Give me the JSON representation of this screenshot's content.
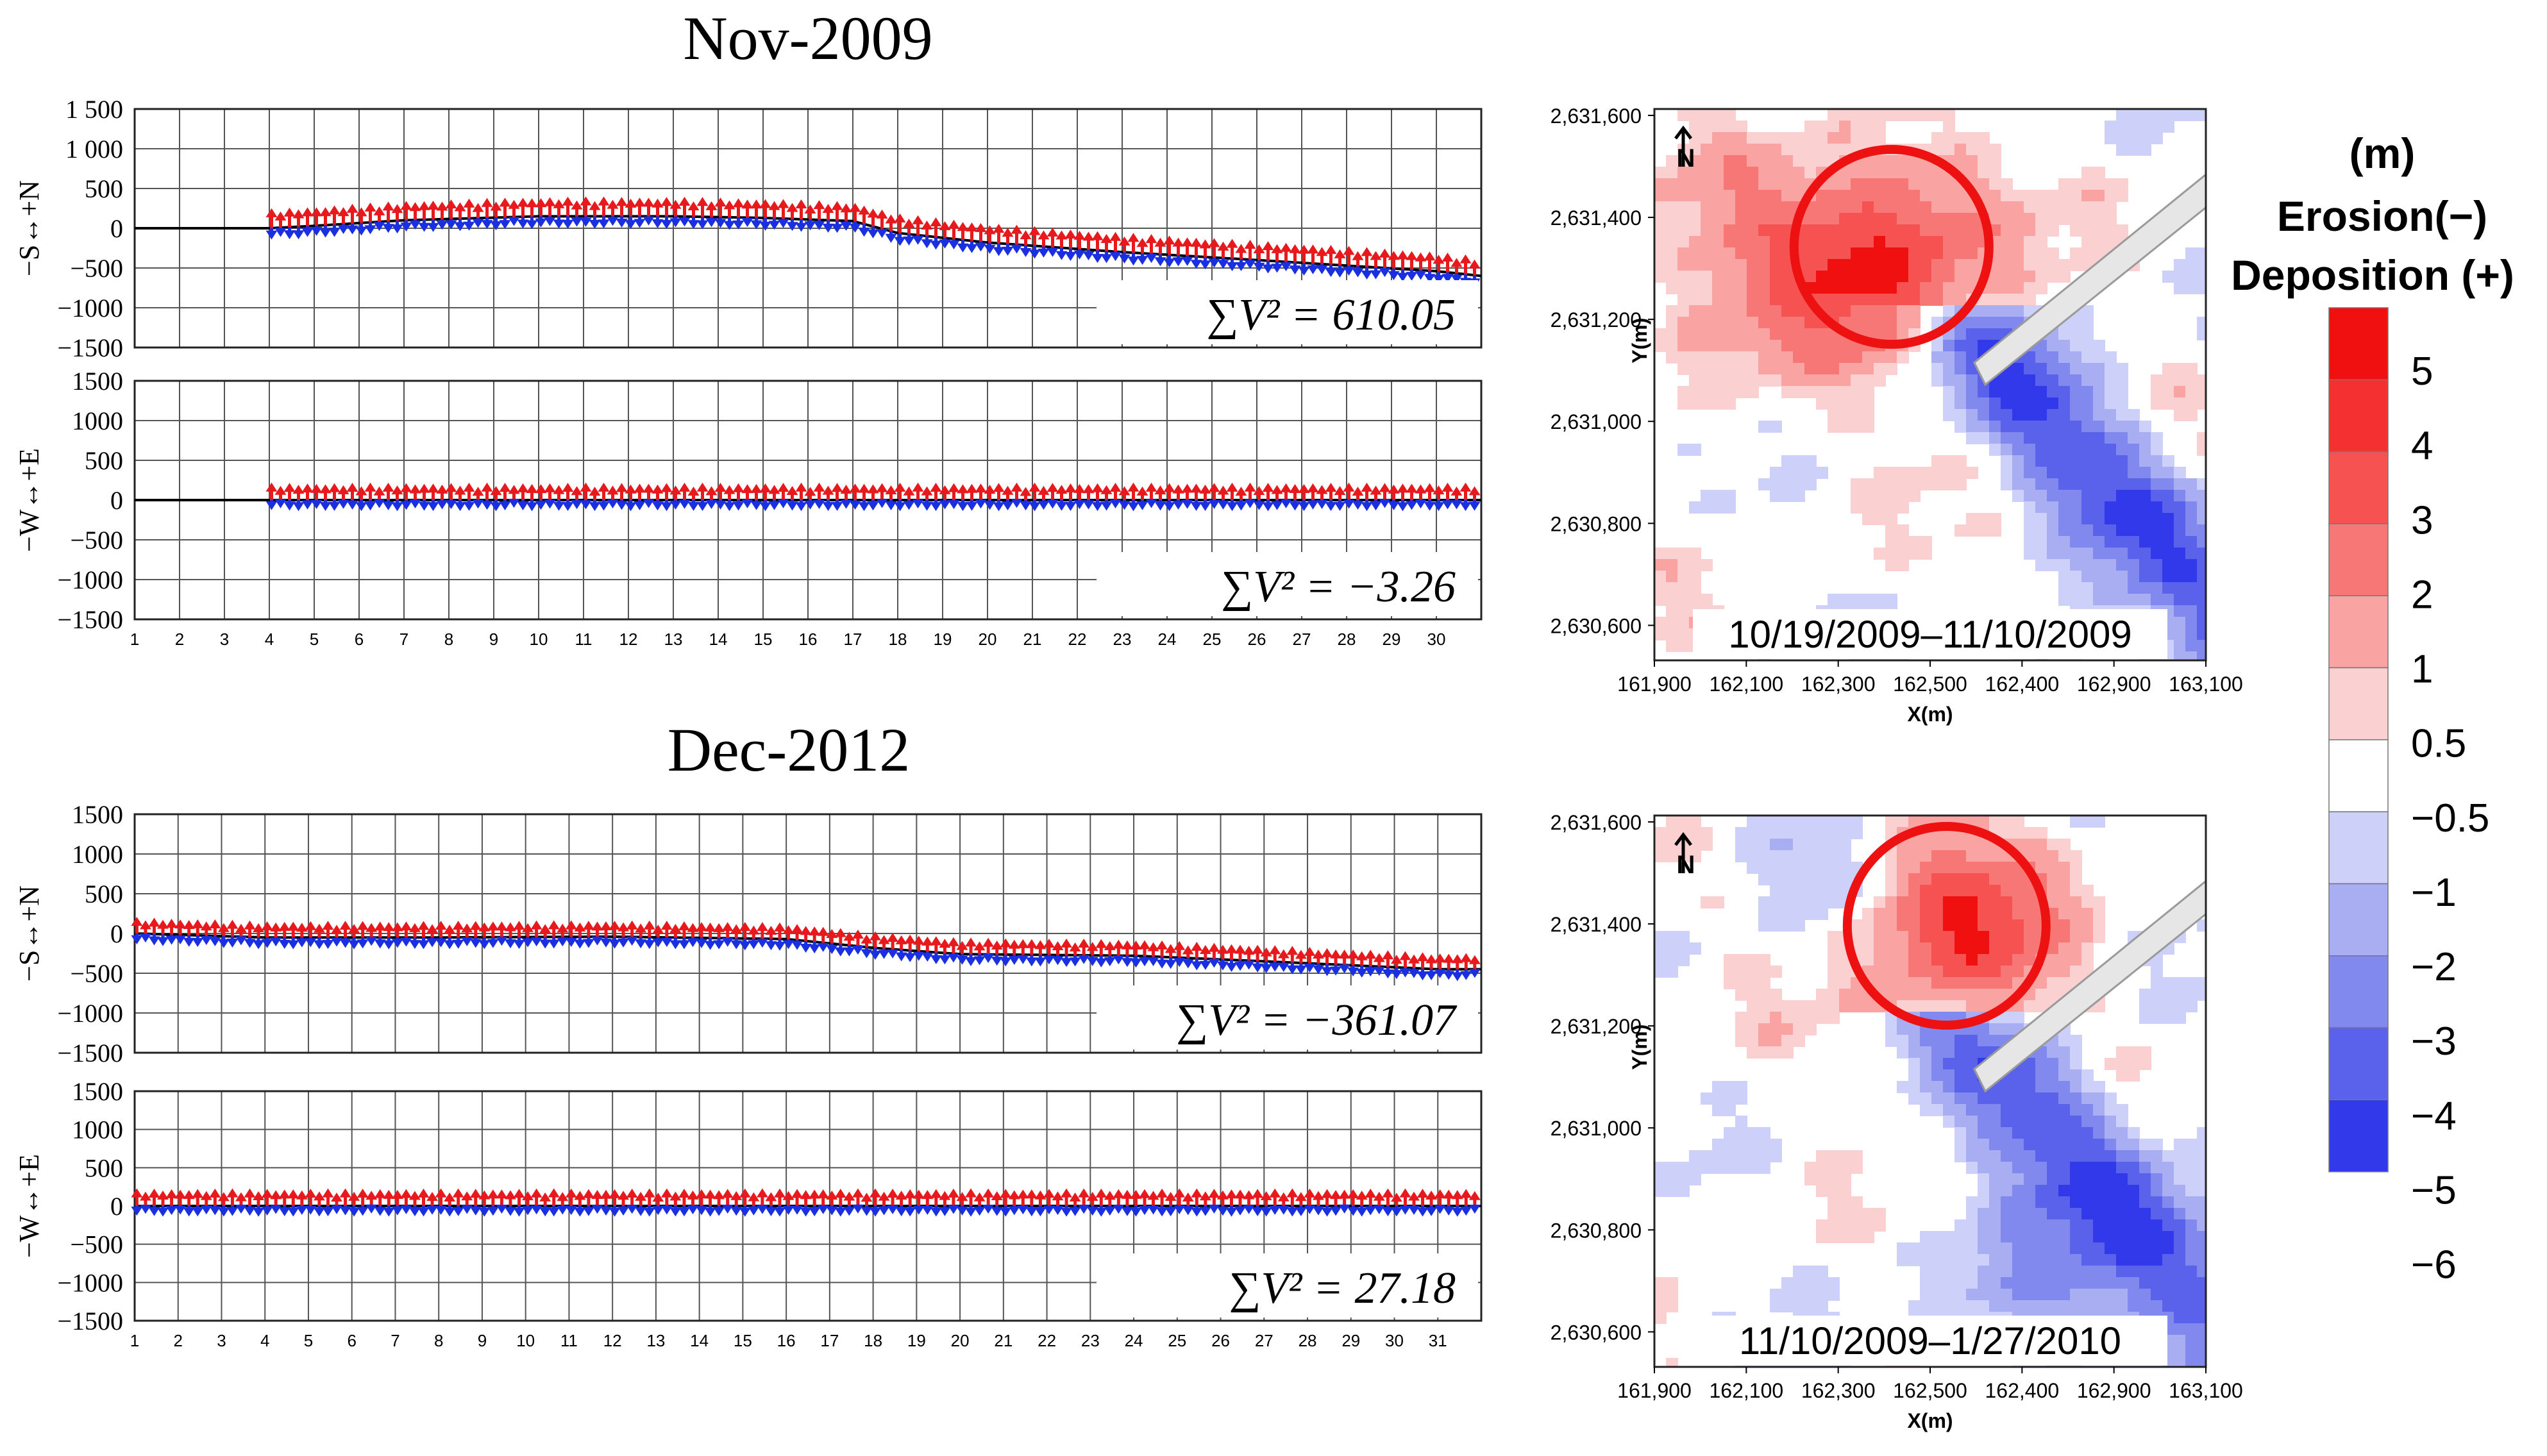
{
  "colors": {
    "deposition": "#e8191c",
    "erosion": "#1a2fe0",
    "shoreline": "#000000",
    "grid": "#555555",
    "circle": "#ee1111"
  },
  "icons": [
    "north-arrow-icon"
  ],
  "chart_data": [
    {
      "type": "quiver-timeseries",
      "title": "Nov-2009",
      "x_ticks": [
        "1",
        "2",
        "3",
        "4",
        "5",
        "6",
        "7",
        "8",
        "9",
        "10",
        "11",
        "12",
        "13",
        "14",
        "15",
        "16",
        "17",
        "18",
        "19",
        "20",
        "21",
        "22",
        "23",
        "24",
        "25",
        "26",
        "27",
        "28",
        "29",
        "30"
      ],
      "panels": [
        {
          "ylabel": "−S↔+N",
          "yticks": [
            "1 500",
            "1 000",
            "500",
            "0",
            "−500",
            "−1000",
            "−1500"
          ],
          "ylim": [
            -1500,
            1500
          ],
          "baseline": [
            [
              1,
              0
            ],
            [
              4,
              0
            ],
            [
              5,
              30
            ],
            [
              7,
              100
            ],
            [
              10,
              150
            ],
            [
              13,
              150
            ],
            [
              15,
              130
            ],
            [
              17,
              90
            ],
            [
              18,
              -60
            ],
            [
              20,
              -180
            ],
            [
              23,
              -300
            ],
            [
              26,
              -400
            ],
            [
              30,
              -540
            ],
            [
              31,
              -600
            ]
          ],
          "up_magnitude": 250,
          "down_magnitude": 160,
          "data_start": 4,
          "label": "∑V² = 610.05"
        },
        {
          "ylabel": "−W↔+E",
          "yticks": [
            "1500",
            "1000",
            "500",
            "0",
            "−500",
            "−1000",
            "−1500"
          ],
          "ylim": [
            -1500,
            1500
          ],
          "baseline": [
            [
              1,
              0
            ],
            [
              31,
              0
            ]
          ],
          "up_magnitude": 220,
          "down_magnitude": 140,
          "data_start": 4,
          "label": "∑V² = −3.26"
        }
      ]
    },
    {
      "type": "quiver-timeseries",
      "title": "Dec-2012",
      "x_ticks": [
        "1",
        "2",
        "3",
        "4",
        "5",
        "6",
        "7",
        "8",
        "9",
        "10",
        "11",
        "12",
        "13",
        "14",
        "15",
        "16",
        "17",
        "18",
        "19",
        "20",
        "21",
        "22",
        "23",
        "24",
        "25",
        "26",
        "27",
        "28",
        "29",
        "30",
        "31"
      ],
      "panels": [
        {
          "ylabel": "−S↔+N",
          "yticks": [
            "1500",
            "1000",
            "500",
            "0",
            "−500",
            "−1000",
            "−1500"
          ],
          "ylim": [
            -1500,
            1500
          ],
          "baseline": [
            [
              1,
              0
            ],
            [
              4,
              -50
            ],
            [
              8,
              -50
            ],
            [
              12,
              -40
            ],
            [
              16,
              -70
            ],
            [
              18,
              -180
            ],
            [
              20,
              -260
            ],
            [
              24,
              -280
            ],
            [
              27,
              -350
            ],
            [
              31,
              -450
            ]
          ],
          "up_magnitude": 210,
          "down_magnitude": 150,
          "data_start": 1,
          "label": "∑V² = −361.07"
        },
        {
          "ylabel": "−W↔+E",
          "yticks": [
            "1500",
            "1000",
            "500",
            "0",
            "−500",
            "−1000",
            "−1500"
          ],
          "ylim": [
            -1500,
            1500
          ],
          "baseline": [
            [
              1,
              0
            ],
            [
              31,
              0
            ]
          ],
          "up_magnitude": 230,
          "down_magnitude": 140,
          "data_start": 1,
          "label": "∑V² = 27.18"
        }
      ]
    },
    {
      "type": "heatmap",
      "date_range": "10/19/2009–11/10/2009",
      "xlabel": "X(m)",
      "ylabel": "Y(m)",
      "xticks": [
        "161,900",
        "162,100",
        "162,300",
        "162,500",
        "162,400",
        "162,900",
        "163,100"
      ],
      "yticks": [
        "2,631,600",
        "2,631,400",
        "2,631,200",
        "2,631,000",
        "2,630,800",
        "2,630,600"
      ],
      "north_label": "N"
    },
    {
      "type": "heatmap",
      "date_range": "11/10/2009–1/27/2010",
      "xlabel": "X(m)",
      "ylabel": "Y(m)",
      "xticks": [
        "161,900",
        "162,100",
        "162,300",
        "162,500",
        "162,400",
        "162,900",
        "163,100"
      ],
      "yticks": [
        "2,631,600",
        "2,631,400",
        "2,631,200",
        "2,631,000",
        "2,630,800",
        "2,630,600"
      ],
      "north_label": "N"
    }
  ],
  "legend": {
    "unit": "(m)",
    "line1": "Erosion(−)",
    "line2": "Deposition (+)",
    "labels": [
      "5",
      "4",
      "3",
      "2",
      "1",
      "0.5",
      "−0.5",
      "−1",
      "−2",
      "−3",
      "−4",
      "−5",
      "−6"
    ],
    "swatches": [
      "#f01010",
      "#f53030",
      "#f65252",
      "#f77777",
      "#f9a3a3",
      "#fbd0d0",
      "#ffffff",
      "#cdd0f8",
      "#a9aef2",
      "#8188ee",
      "#5a62ec",
      "#3139eb",
      "#0f14ee"
    ]
  }
}
